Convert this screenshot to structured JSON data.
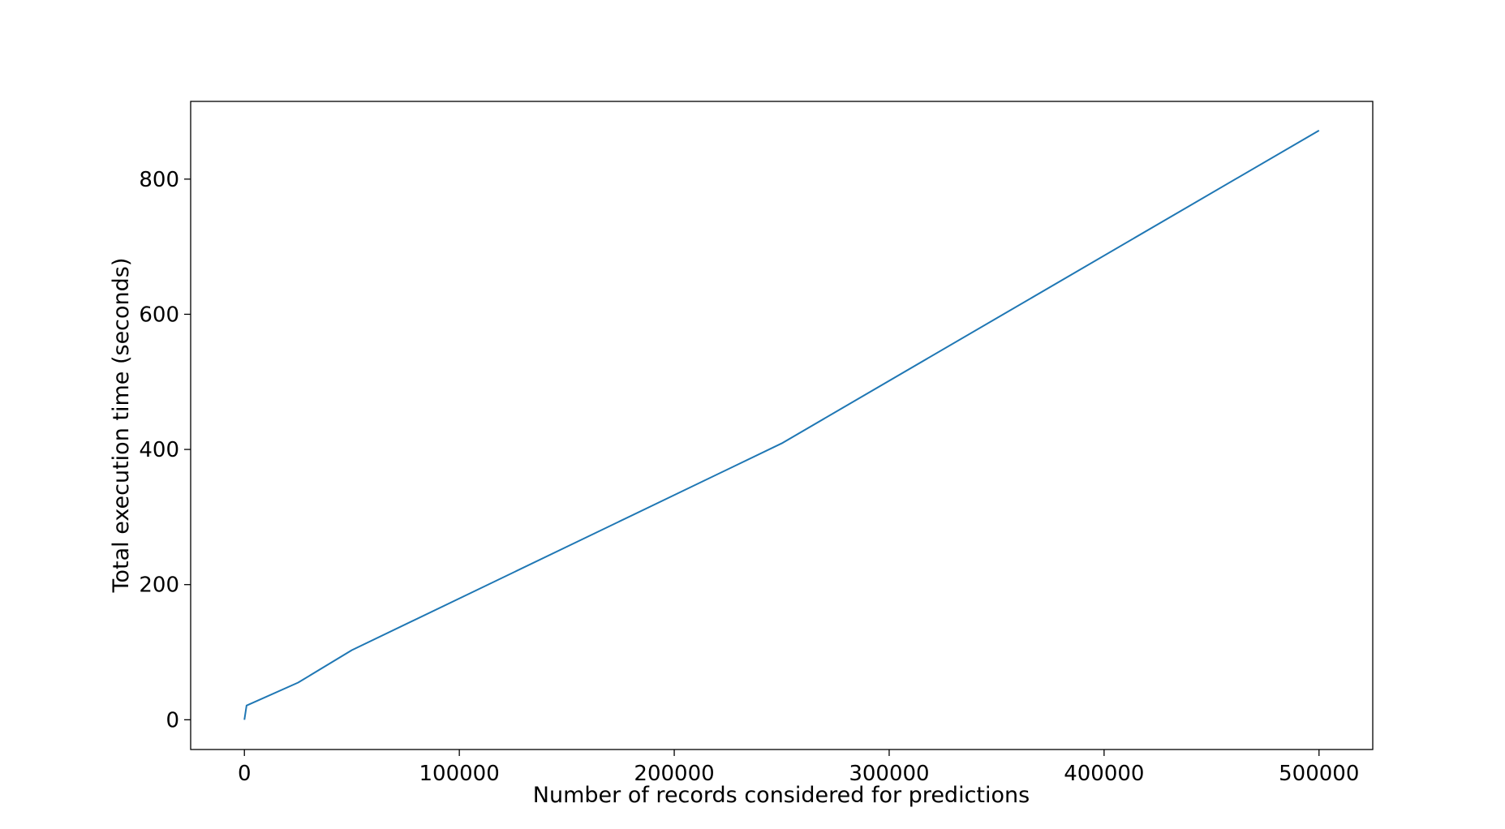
{
  "chart_data": {
    "type": "line",
    "title": "",
    "xlabel": "Number of records considered for predictions",
    "ylabel": "Total execution time (seconds)",
    "xlim": [
      -25000,
      525000
    ],
    "ylim": [
      -44,
      915
    ],
    "xticks": [
      0,
      100000,
      200000,
      300000,
      400000,
      500000
    ],
    "xtick_labels": [
      "0",
      "100000",
      "200000",
      "300000",
      "400000",
      "500000"
    ],
    "yticks": [
      0,
      200,
      400,
      600,
      800
    ],
    "ytick_labels": [
      "0",
      "200",
      "400",
      "600",
      "800"
    ],
    "grid": false,
    "legend": "none",
    "series": [
      {
        "color": "#1f77b4",
        "x": [
          0,
          1000,
          25000,
          50000,
          250000,
          500000
        ],
        "y": [
          0,
          21,
          55,
          103,
          409,
          872
        ]
      }
    ]
  }
}
